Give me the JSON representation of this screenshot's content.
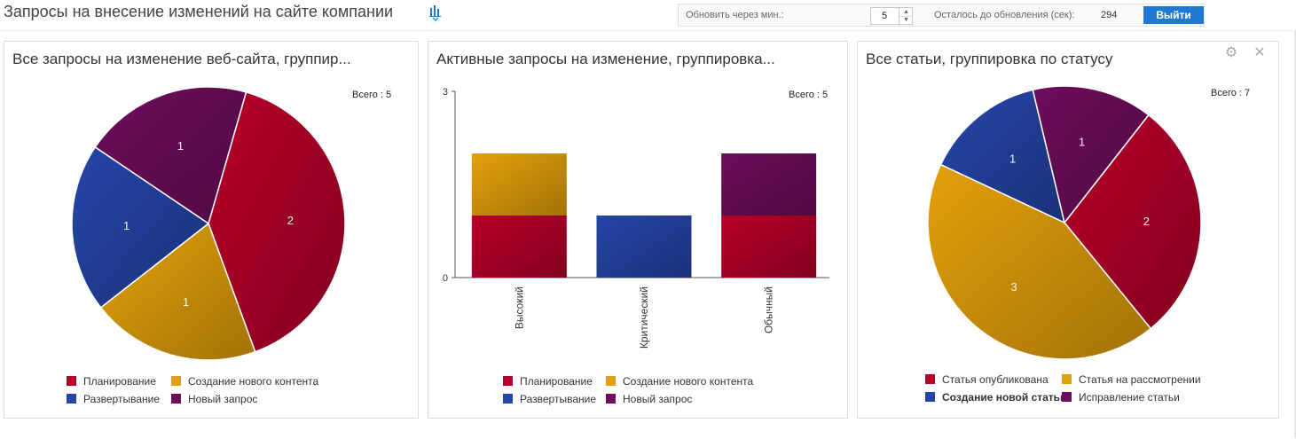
{
  "header": {
    "title": "Запросы на внесение изменений на сайте компании",
    "chart_icon": "bar-chart-icon",
    "refresh_label": "Обновить через мин.:",
    "refresh_value": "5",
    "remaining_label": "Осталось до обновления (сек):",
    "remaining_value": "294",
    "logout_label": "Выйти"
  },
  "colors": {
    "red": "#b8002a",
    "gold": "#e3a00a",
    "blue": "#2545a8",
    "purple": "#6e0d5c"
  },
  "panels": [
    {
      "title": "Все запросы на изменение веб-сайта, группир...",
      "total": "Всего : 5",
      "legend": [
        {
          "label": "Планирование",
          "color": "#b8002a"
        },
        {
          "label": "Создание нового контента",
          "color": "#e3a00a"
        },
        {
          "label": "Развертывание",
          "color": "#2545a8"
        },
        {
          "label": "Новый запрос",
          "color": "#6e0d5c"
        }
      ]
    },
    {
      "title": "Активные запросы на изменение, группировка...",
      "total": "Всего : 5",
      "legend": [
        {
          "label": "Планирование",
          "color": "#b8002a"
        },
        {
          "label": "Создание нового контента",
          "color": "#e3a00a"
        },
        {
          "label": "Развертывание",
          "color": "#2545a8"
        },
        {
          "label": "Новый запрос",
          "color": "#6e0d5c"
        }
      ]
    },
    {
      "title": "Все статьи, группировка по статусу",
      "total": "Всего : 7",
      "settings_icon": "gear-icon",
      "close_icon": "close-icon",
      "legend": [
        {
          "label": "Статья опубликована",
          "color": "#b8002a"
        },
        {
          "label": "Статья на рассмотрении",
          "color": "#e3a00a"
        },
        {
          "label": "Создание новой статьи",
          "color": "#2545a8"
        },
        {
          "label": "Исправление статьи",
          "color": "#6e0d5c"
        }
      ]
    }
  ],
  "chart_data": [
    {
      "type": "pie",
      "title": "Все запросы на изменение веб-сайта, группир...",
      "categories": [
        "Планирование",
        "Создание нового контента",
        "Развертывание",
        "Новый запрос"
      ],
      "values": [
        2,
        1,
        1,
        1
      ],
      "colors": [
        "#b8002a",
        "#e3a00a",
        "#2545a8",
        "#6e0d5c"
      ],
      "total": 5,
      "legend": "bottom"
    },
    {
      "type": "bar",
      "stacked": true,
      "title": "Активные запросы на изменение, группировка...",
      "categories": [
        "Высокий",
        "Критический",
        "Обычный"
      ],
      "series": [
        {
          "name": "Планирование",
          "values": [
            1,
            0,
            1
          ],
          "color": "#b8002a"
        },
        {
          "name": "Создание нового контента",
          "values": [
            1,
            0,
            0
          ],
          "color": "#e3a00a"
        },
        {
          "name": "Развертывание",
          "values": [
            0,
            1,
            0
          ],
          "color": "#2545a8"
        },
        {
          "name": "Новый запрос",
          "values": [
            0,
            0,
            1
          ],
          "color": "#6e0d5c"
        }
      ],
      "ylim": [
        0,
        3
      ],
      "yticks": [
        "0",
        "3"
      ],
      "total": 5,
      "grid": false,
      "legend": "bottom"
    },
    {
      "type": "pie",
      "title": "Все статьи, группировка по статусу",
      "categories": [
        "Статья опубликована",
        "Статья на рассмотрении",
        "Создание новой статьи",
        "Исправление статьи"
      ],
      "values": [
        2,
        3,
        1,
        1
      ],
      "colors": [
        "#b8002a",
        "#e3a00a",
        "#2545a8",
        "#6e0d5c"
      ],
      "total": 7,
      "legend": "bottom"
    }
  ]
}
